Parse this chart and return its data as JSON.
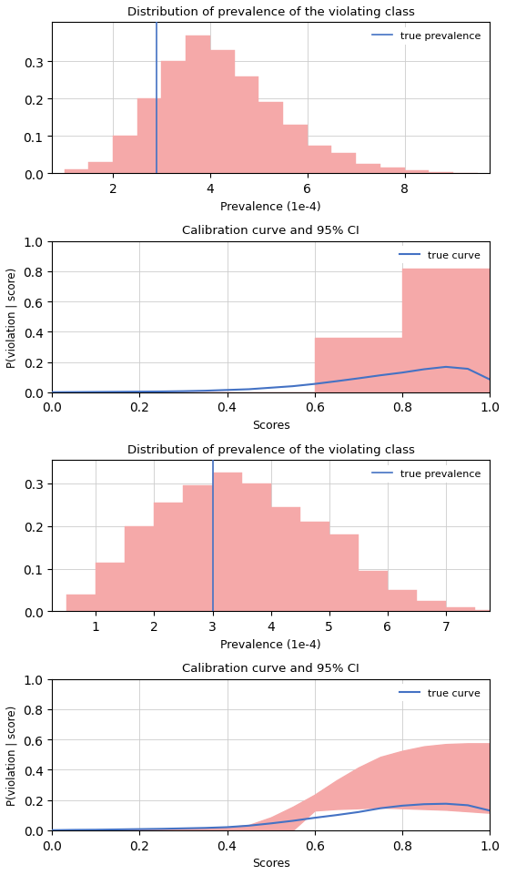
{
  "fig_width": 5.56,
  "fig_height": 9.62,
  "hist_color": "#f5a9a9",
  "vline_color": "#4472c4",
  "ci_fill_color": "#f5a9a9",
  "curve_color": "#4472c4",
  "grid_color": "#cccccc",
  "background_color": "#ffffff",
  "plot1": {
    "title": "Distribution of prevalence of the violating class",
    "xlabel": "Prevalence (1e-4)",
    "ylabel": "",
    "bin_left_edges": [
      1.0,
      1.5,
      2.0,
      2.5,
      3.0,
      3.5,
      4.0,
      4.5,
      5.0,
      5.5,
      6.0,
      6.5,
      7.0,
      7.5,
      8.0,
      8.5,
      9.0
    ],
    "bin_heights": [
      0.01,
      0.03,
      0.1,
      0.2,
      0.3,
      0.37,
      0.33,
      0.26,
      0.19,
      0.13,
      0.075,
      0.055,
      0.025,
      0.015,
      0.008,
      0.003,
      0.001
    ],
    "bin_width": 0.5,
    "vline_x": 2.9,
    "xlim": [
      0.75,
      9.75
    ],
    "ylim": [
      0,
      0.405
    ],
    "yticks": [
      0.0,
      0.1,
      0.2,
      0.3
    ],
    "xticks": [
      2,
      4,
      6,
      8
    ],
    "legend_label": "true prevalence"
  },
  "plot2": {
    "title": "Calibration curve and 95% CI",
    "xlabel": "Scores",
    "ylabel": "P(violation | score)",
    "scores": [
      0.0,
      0.05,
      0.1,
      0.15,
      0.2,
      0.25,
      0.3,
      0.35,
      0.4,
      0.45,
      0.5,
      0.55,
      0.6,
      0.65,
      0.7,
      0.75,
      0.8,
      0.85,
      0.9,
      0.95,
      1.0
    ],
    "true_curve": [
      0.0,
      0.001,
      0.002,
      0.003,
      0.004,
      0.005,
      0.007,
      0.01,
      0.015,
      0.02,
      0.03,
      0.04,
      0.055,
      0.073,
      0.092,
      0.112,
      0.13,
      0.152,
      0.168,
      0.155,
      0.085
    ],
    "ci_x": [
      0.0,
      0.6,
      0.6,
      0.8,
      0.8,
      1.0
    ],
    "ci_upper_y": [
      0.0,
      0.0,
      0.36,
      0.36,
      0.82,
      0.82
    ],
    "ci_lower_y": [
      0.0,
      0.0,
      0.0,
      0.0,
      0.0,
      0.0
    ],
    "xlim": [
      0.0,
      1.0
    ],
    "ylim": [
      0.0,
      1.0
    ],
    "yticks": [
      0.0,
      0.2,
      0.4,
      0.6,
      0.8,
      1.0
    ],
    "xticks": [
      0.0,
      0.2,
      0.4,
      0.6,
      0.8,
      1.0
    ],
    "legend_label": "true curve",
    "vlines": [
      0.4,
      0.6
    ]
  },
  "plot3": {
    "title": "Distribution of prevalence of the violating class",
    "xlabel": "Prevalence (1e-4)",
    "ylabel": "",
    "bin_left_edges": [
      0.5,
      1.0,
      1.5,
      2.0,
      2.5,
      3.0,
      3.5,
      4.0,
      4.5,
      5.0,
      5.5,
      6.0,
      6.5,
      7.0,
      7.5
    ],
    "bin_heights": [
      0.04,
      0.115,
      0.2,
      0.255,
      0.295,
      0.325,
      0.3,
      0.245,
      0.21,
      0.18,
      0.095,
      0.05,
      0.025,
      0.01,
      0.002
    ],
    "bin_width": 0.5,
    "vline_x": 3.0,
    "xlim": [
      0.25,
      7.75
    ],
    "ylim": [
      0,
      0.355
    ],
    "yticks": [
      0.0,
      0.1,
      0.2,
      0.3
    ],
    "xticks": [
      1,
      2,
      3,
      4,
      5,
      6,
      7
    ],
    "legend_label": "true prevalence"
  },
  "plot4": {
    "title": "Calibration curve and 95% CI",
    "xlabel": "Scores",
    "ylabel": "P(violation | score)",
    "scores": [
      0.0,
      0.05,
      0.1,
      0.15,
      0.2,
      0.25,
      0.3,
      0.35,
      0.4,
      0.45,
      0.5,
      0.55,
      0.6,
      0.65,
      0.7,
      0.75,
      0.8,
      0.85,
      0.9,
      0.95,
      1.0
    ],
    "true_curve": [
      0.0,
      0.002,
      0.003,
      0.005,
      0.007,
      0.009,
      0.012,
      0.015,
      0.02,
      0.03,
      0.045,
      0.062,
      0.082,
      0.1,
      0.12,
      0.145,
      0.162,
      0.172,
      0.175,
      0.165,
      0.13
    ],
    "ci_upper": [
      0.0,
      0.002,
      0.003,
      0.005,
      0.007,
      0.009,
      0.012,
      0.015,
      0.02,
      0.035,
      0.085,
      0.155,
      0.235,
      0.33,
      0.415,
      0.485,
      0.525,
      0.555,
      0.57,
      0.575,
      0.575
    ],
    "ci_lower": [
      0.0,
      0.0,
      0.0,
      0.0,
      0.0,
      0.0,
      0.0,
      0.0,
      0.0,
      0.0,
      0.0,
      0.0,
      0.13,
      0.14,
      0.145,
      0.15,
      0.145,
      0.14,
      0.135,
      0.125,
      0.115
    ],
    "xlim": [
      0.0,
      1.0
    ],
    "ylim": [
      0.0,
      1.0
    ],
    "yticks": [
      0.0,
      0.2,
      0.4,
      0.6,
      0.8,
      1.0
    ],
    "xticks": [
      0.0,
      0.2,
      0.4,
      0.6,
      0.8,
      1.0
    ],
    "legend_label": "true curve",
    "vlines": [
      0.4,
      0.6
    ]
  }
}
